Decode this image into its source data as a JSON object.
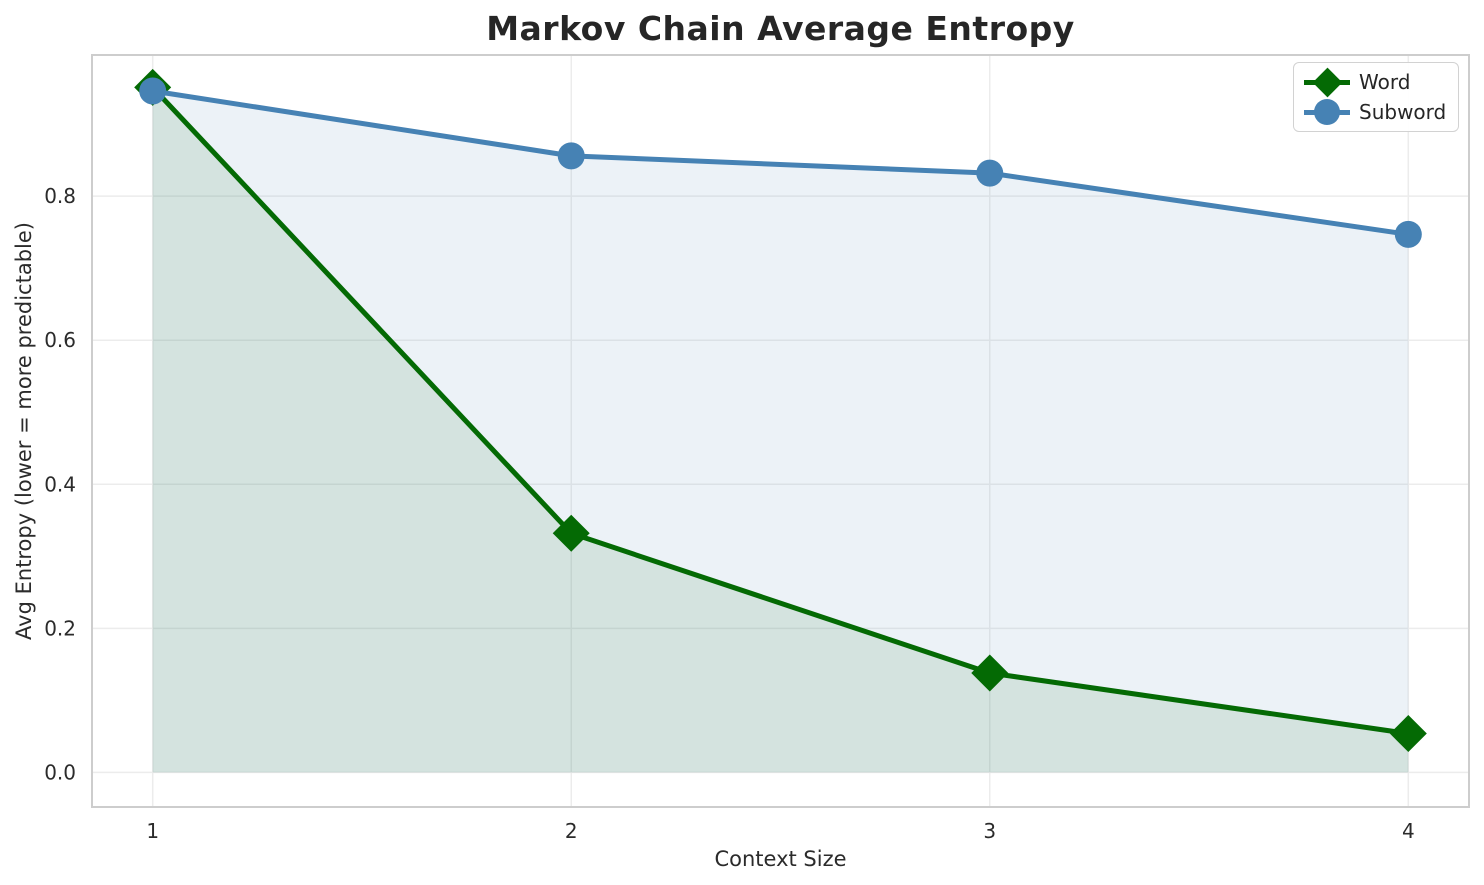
{
  "chart_data": {
    "type": "line",
    "title": "Markov Chain Average Entropy",
    "xlabel": "Context Size",
    "ylabel": "Avg Entropy (lower = more predictable)",
    "x": [
      1,
      2,
      3,
      4
    ],
    "series": [
      {
        "name": "Word",
        "color": "#046a04",
        "fill": "rgba(0,100,0,0.10)",
        "marker": "diamond",
        "values": [
          0.951,
          0.332,
          0.138,
          0.054
        ],
        "fill_to_zero": true
      },
      {
        "name": "Subword",
        "color": "#4682b4",
        "fill": "rgba(70,130,180,0.10)",
        "marker": "circle",
        "values": [
          0.946,
          0.856,
          0.832,
          0.747
        ],
        "fill_to_zero": true
      }
    ],
    "xlim": [
      0.855,
      4.145
    ],
    "ylim": [
      -0.048,
      0.996
    ],
    "xticks": [
      {
        "value": 1,
        "label": "1"
      },
      {
        "value": 2,
        "label": "2"
      },
      {
        "value": 3,
        "label": "3"
      },
      {
        "value": 4,
        "label": "4"
      }
    ],
    "yticks": [
      {
        "value": 0.0,
        "label": "0.0"
      },
      {
        "value": 0.2,
        "label": "0.2"
      },
      {
        "value": 0.4,
        "label": "0.4"
      },
      {
        "value": 0.6,
        "label": "0.6"
      },
      {
        "value": 0.8,
        "label": "0.8"
      }
    ],
    "grid": true,
    "legend_position": "upper right",
    "colors": {
      "grid": "#ececec",
      "spine": "#cdcdcd",
      "title_text": "#262626",
      "tick_text": "#2b2b2b",
      "background": "#ffffff"
    }
  }
}
